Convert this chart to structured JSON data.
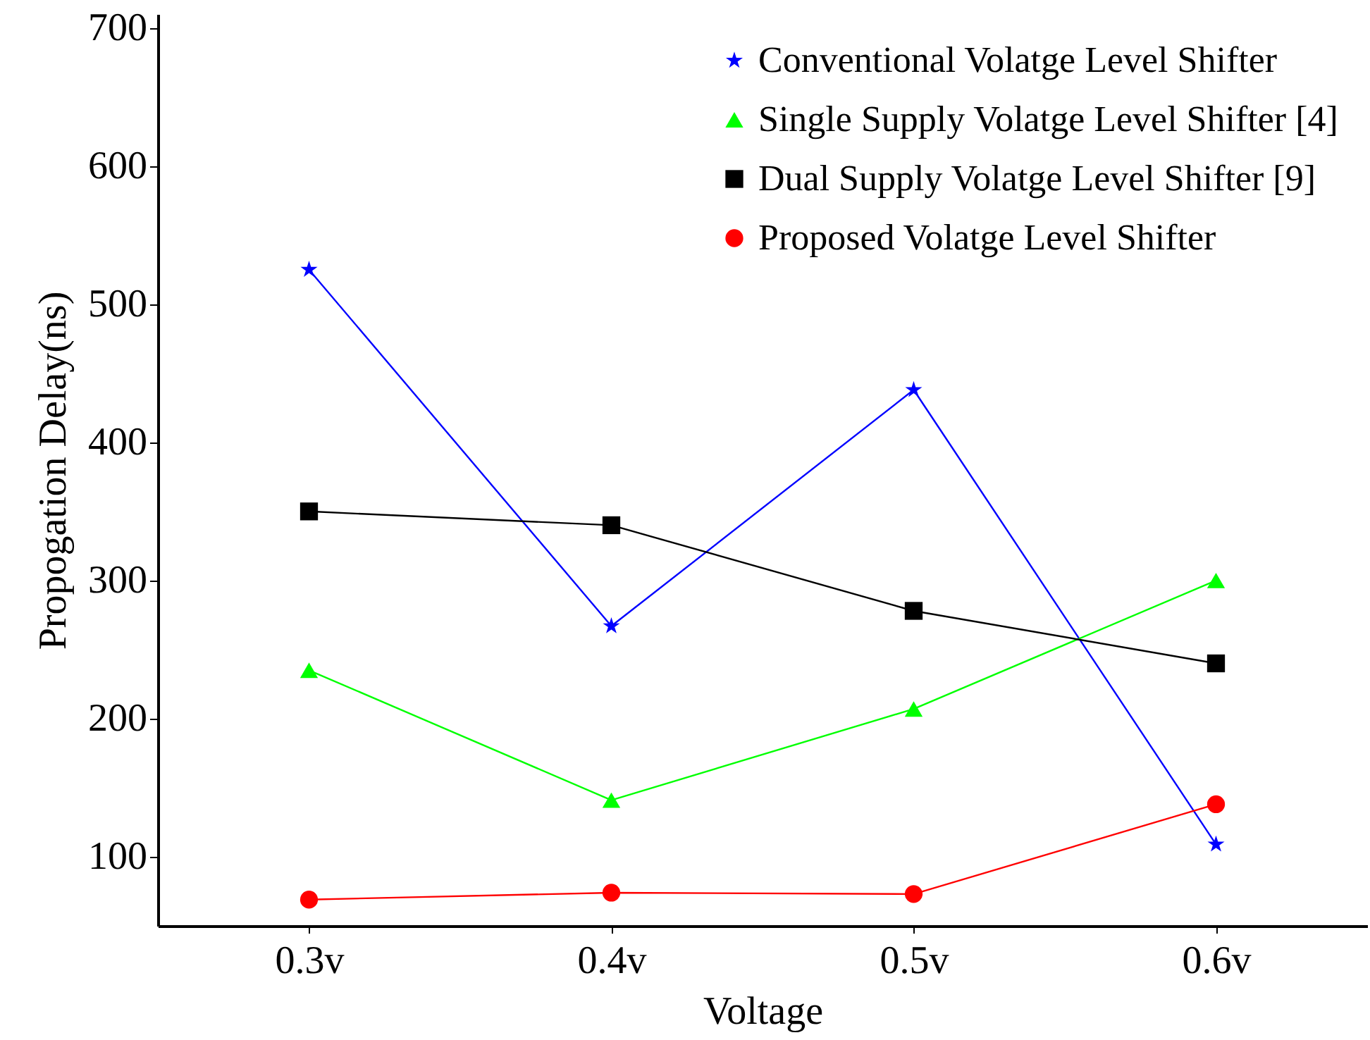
{
  "chart_data": {
    "type": "line",
    "xlabel": "Voltage",
    "ylabel": "Propogation Delay(ns)",
    "categories": [
      "0.3v",
      "0.4v",
      "0.5v",
      "0.6v"
    ],
    "ylim": [
      50,
      710
    ],
    "yticks": [
      100,
      200,
      300,
      400,
      500,
      600,
      700
    ],
    "grid": false,
    "legend": "top right",
    "series": [
      {
        "name": "Conventional Volatge Level Shifter",
        "color": "#0000ff",
        "marker": "star",
        "values": [
          525,
          267,
          438,
          109
        ]
      },
      {
        "name": "Single Supply Volatge Level Shifter [4]",
        "color": "#00ff00",
        "marker": "triangle",
        "values": [
          235,
          141,
          207,
          300
        ]
      },
      {
        "name": "Dual Supply Volatge Level Shifter [9]",
        "color": "#000000",
        "marker": "square",
        "values": [
          350,
          340,
          278,
          240
        ]
      },
      {
        "name": "Proposed Volatge Level Shifter",
        "color": "#ff0000",
        "marker": "circle",
        "values": [
          69,
          74,
          73,
          138
        ]
      }
    ]
  }
}
